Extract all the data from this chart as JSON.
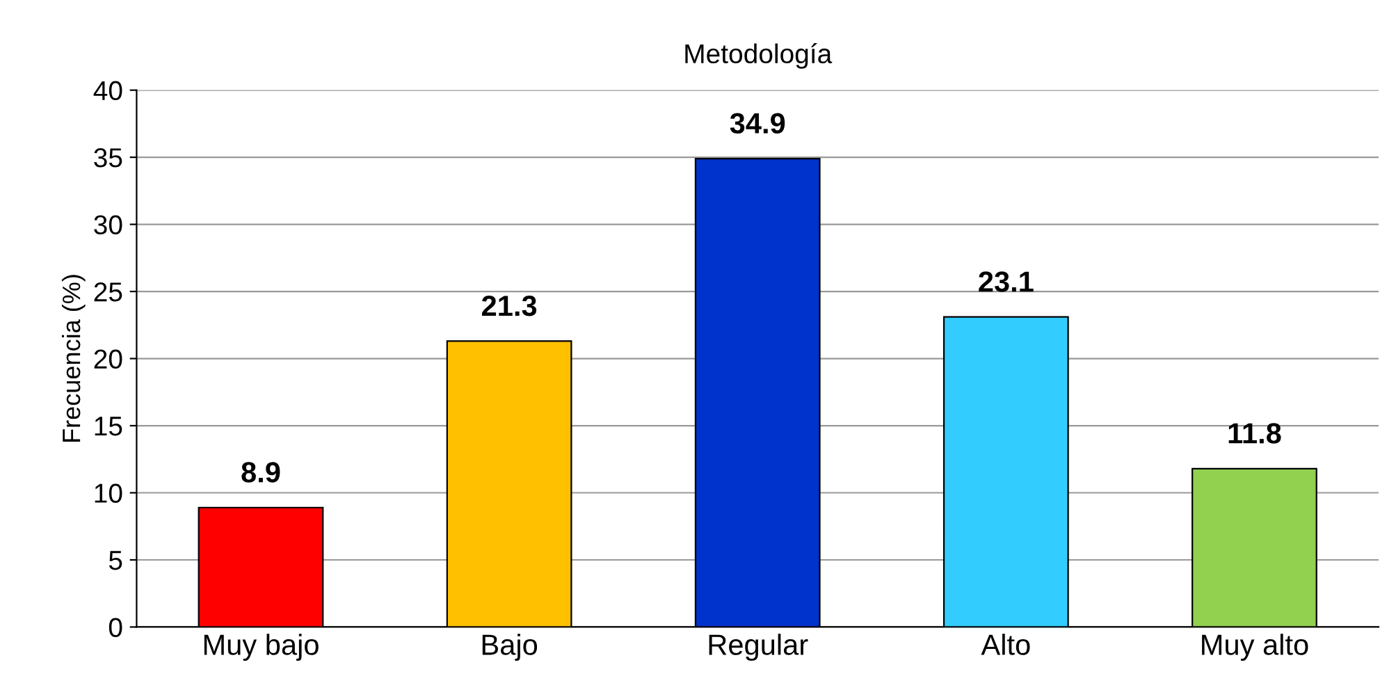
{
  "chart_data": {
    "type": "bar",
    "title": "Metodología",
    "ylabel": "Frecuencia (%)",
    "categories": [
      "Muy bajo",
      "Bajo",
      "Regular",
      "Alto",
      "Muy alto"
    ],
    "values": [
      8.9,
      21.3,
      34.9,
      23.1,
      11.8
    ],
    "colors": [
      "#ff0000",
      "#ffc000",
      "#0033cc",
      "#33ccff",
      "#92d050"
    ],
    "ylim": [
      0,
      40
    ],
    "yticks": [
      0,
      5,
      10,
      15,
      20,
      25,
      30,
      35,
      40
    ],
    "grid": "y",
    "data_labels": true,
    "legend": false
  }
}
